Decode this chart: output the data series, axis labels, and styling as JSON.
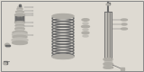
{
  "bg_color": "#dedad2",
  "fig_width": 1.6,
  "fig_height": 0.8,
  "dpi": 100,
  "gray1": "#909090",
  "gray2": "#c0bdb6",
  "gray3": "#6a6a6a",
  "gray4": "#b0ada6",
  "white": "#e8e6e0",
  "dark": "#404040"
}
